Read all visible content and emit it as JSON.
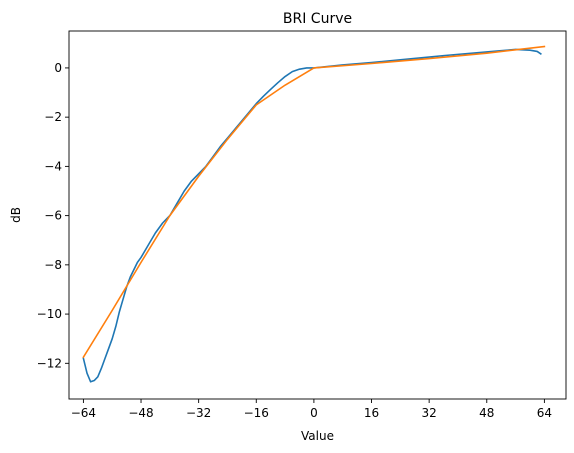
{
  "chart_data": {
    "type": "line",
    "title": "BRI Curve",
    "xlabel": "Value",
    "ylabel": "dB",
    "xlim": [
      -68,
      70
    ],
    "ylim": [
      -13.45,
      1.5
    ],
    "xticks": [
      -64,
      -48,
      -32,
      -16,
      0,
      16,
      32,
      48,
      64
    ],
    "xtick_labels": [
      "−64",
      "−48",
      "−32",
      "−16",
      "0",
      "16",
      "32",
      "48",
      "64"
    ],
    "yticks": [
      -12,
      -10,
      -8,
      -6,
      -4,
      -2,
      0
    ],
    "ytick_labels": [
      "−12",
      "−10",
      "−8",
      "−6",
      "−4",
      "−2",
      "0"
    ],
    "grid": false,
    "series": [
      {
        "color": "#1f77b4",
        "x": [
          -64,
          -63,
          -62,
          -61,
          -60,
          -59,
          -58,
          -57,
          -56,
          -55,
          -54,
          -53,
          -52,
          -51,
          -50,
          -49,
          -48,
          -46,
          -44,
          -42,
          -40,
          -38,
          -36,
          -34,
          -32,
          -30,
          -28,
          -26,
          -24,
          -22,
          -20,
          -18,
          -16,
          -14,
          -12,
          -10,
          -8,
          -6,
          -4,
          -2,
          0,
          8,
          16,
          24,
          32,
          36,
          40,
          44,
          48,
          52,
          56,
          60,
          62,
          63
        ],
        "y": [
          -11.8,
          -12.4,
          -12.75,
          -12.7,
          -12.55,
          -12.2,
          -11.8,
          -11.4,
          -11.0,
          -10.5,
          -9.9,
          -9.4,
          -8.9,
          -8.5,
          -8.2,
          -7.9,
          -7.7,
          -7.2,
          -6.7,
          -6.3,
          -6.0,
          -5.5,
          -5.0,
          -4.6,
          -4.3,
          -4.0,
          -3.6,
          -3.2,
          -2.85,
          -2.5,
          -2.15,
          -1.8,
          -1.45,
          -1.15,
          -0.87,
          -0.6,
          -0.35,
          -0.15,
          -0.05,
          0.0,
          0.0,
          0.12,
          0.22,
          0.33,
          0.44,
          0.5,
          0.55,
          0.6,
          0.65,
          0.7,
          0.75,
          0.72,
          0.67,
          0.57
        ]
      },
      {
        "color": "#ff7f0e",
        "x": [
          -64,
          -56,
          -48,
          -40,
          -32,
          -24,
          -16,
          -8,
          0,
          16,
          32,
          48,
          64
        ],
        "y": [
          -11.75,
          -9.85,
          -7.9,
          -6.0,
          -4.4,
          -2.9,
          -1.5,
          -0.7,
          0.0,
          0.18,
          0.38,
          0.6,
          0.87
        ]
      }
    ]
  }
}
